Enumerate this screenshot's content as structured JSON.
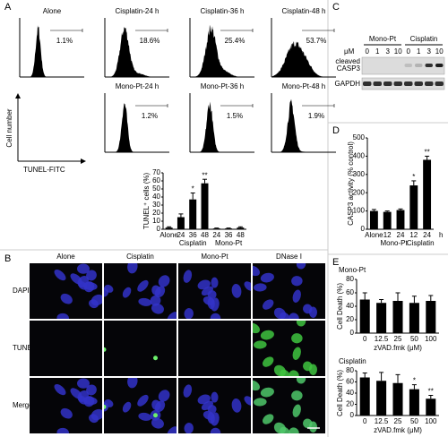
{
  "panel_labels": [
    "A",
    "B",
    "C",
    "D",
    "E"
  ],
  "flow": {
    "axis_y": "Cell number",
    "axis_x": "TUNEL-FITC",
    "plots": [
      {
        "label": "Alone",
        "gate": "1.1%"
      },
      {
        "label": "Cisplatin-24 h",
        "gate": "18.6%"
      },
      {
        "label": "Cisplatin-36 h",
        "gate": "25.4%"
      },
      {
        "label": "Cisplatin-48 h",
        "gate": "53.7%"
      },
      {
        "label": "Mono-Pt-24 h",
        "gate": "1.2%"
      },
      {
        "label": "Mono-Pt-36 h",
        "gate": "1.5%"
      },
      {
        "label": "Mono-Pt-48 h",
        "gate": "1.9%"
      }
    ]
  },
  "blot": {
    "groups": [
      "Mono-Pt",
      "Cisplatin"
    ],
    "unit": "μM",
    "lanes": [
      "0",
      "1",
      "3",
      "10",
      "0",
      "1",
      "3",
      "10"
    ],
    "rows": [
      [
        "cleaved",
        "CASP3"
      ],
      [
        "GAPDH"
      ]
    ]
  },
  "microscopy": {
    "columns": [
      "Alone",
      "Cisplatin",
      "Mono-Pt",
      "DNase I"
    ],
    "rows": [
      "DAPI",
      "TUNEL",
      "Merge"
    ]
  },
  "chart_data": [
    {
      "type": "bar",
      "ylabel": "TUNEL⁺ cells (%)",
      "categories": [
        "Alone",
        "24",
        "36",
        "48",
        "24",
        "36",
        "48"
      ],
      "groups": [
        "Cisplatin",
        "Mono-Pt"
      ],
      "values": [
        2,
        15,
        37,
        57,
        1,
        1,
        2
      ],
      "errors": [
        1,
        4,
        8,
        5,
        0.5,
        0.5,
        1
      ],
      "significance": [
        null,
        null,
        "*",
        "**",
        null,
        null,
        null
      ],
      "color": "#000000",
      "ylim": [
        0,
        70
      ],
      "yticks": [
        0,
        10,
        20,
        30,
        40,
        50,
        60,
        70
      ]
    },
    {
      "type": "bar",
      "ylabel": "CASP3 activity (% control)",
      "categories": [
        "Alone",
        "12",
        "24",
        "12",
        "24"
      ],
      "x_unit": "h",
      "groups": [
        "Mono-Pt",
        "Cisplatin"
      ],
      "values": [
        100,
        95,
        105,
        240,
        380
      ],
      "errors": [
        8,
        5,
        6,
        25,
        20
      ],
      "significance": [
        null,
        null,
        null,
        "*",
        "**"
      ],
      "color": "#000000",
      "ylim": [
        0,
        500
      ],
      "yticks": [
        0,
        100,
        200,
        300,
        400,
        500
      ]
    },
    {
      "type": "bar",
      "title": "Mono-Pt",
      "ylabel": "Cell Death (%)",
      "xlabel": "zVAD.fmk (μM)",
      "categories": [
        "0",
        "12.5",
        "25",
        "50",
        "100"
      ],
      "values": [
        50,
        45,
        48,
        45,
        48
      ],
      "errors": [
        10,
        5,
        12,
        10,
        8
      ],
      "color": "#000000",
      "ylim": [
        0,
        80
      ],
      "yticks": [
        0,
        20,
        40,
        60,
        80
      ]
    },
    {
      "type": "bar",
      "title": "Cisplatin",
      "ylabel": "Cell Death (%)",
      "xlabel": "zVAD.fmk (μM)",
      "categories": [
        "0",
        "12.5",
        "25",
        "50",
        "100"
      ],
      "values": [
        68,
        62,
        58,
        47,
        30
      ],
      "errors": [
        8,
        15,
        15,
        8,
        6
      ],
      "significance": [
        null,
        null,
        null,
        "*",
        "**"
      ],
      "color": "#000000",
      "ylim": [
        0,
        80
      ],
      "yticks": [
        0,
        20,
        40,
        60,
        80
      ]
    }
  ]
}
